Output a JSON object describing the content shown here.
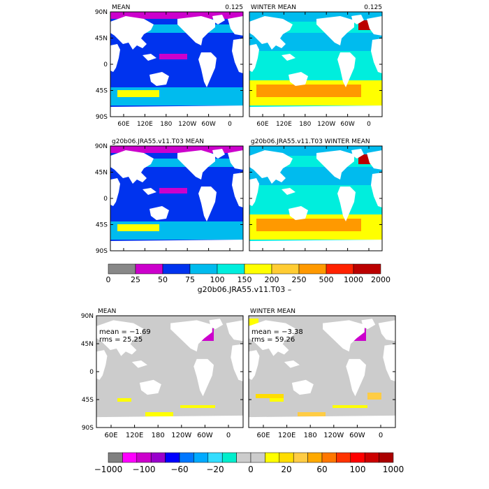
{
  "top_group": {
    "panels": [
      {
        "key": "p1",
        "title": "MEAN",
        "corner_value": "0.125",
        "show_lat_labels": true,
        "show_lon_labels": true,
        "style": "mean"
      },
      {
        "key": "p2",
        "title": "WINTER MEAN",
        "corner_value": "0.125",
        "show_lat_labels": false,
        "show_lon_labels": true,
        "style": "winter"
      },
      {
        "key": "p3",
        "title": "g20b06.JRA55.v11.T03 MEAN",
        "corner_value": "",
        "show_lat_labels": true,
        "show_lon_labels": false,
        "style": "mean"
      },
      {
        "key": "p4",
        "title": "g20b06.JRA55.v11.T03 WINTER MEAN",
        "corner_value": "",
        "show_lat_labels": false,
        "show_lon_labels": false,
        "style": "winter"
      }
    ],
    "lat_labels": [
      "90N",
      "45N",
      "0",
      "45S",
      "90S"
    ],
    "lon_labels": [
      "60E",
      "120E",
      "180",
      "120W",
      "60W",
      "0"
    ],
    "colorbar": {
      "colors": [
        "#888888",
        "#cc00cc",
        "#0033ee",
        "#00bbee",
        "#00eedd",
        "#ffff00",
        "#ffcc33",
        "#ff9900",
        "#ff2200",
        "#bb0000"
      ],
      "labels": [
        "0",
        "25",
        "50",
        "75",
        "100",
        "150",
        "200",
        "250",
        "500",
        "1000",
        "2000"
      ],
      "title": "g20b06.JRA55.v11.T03 –"
    }
  },
  "bottom_group": {
    "panels": [
      {
        "key": "d1",
        "title": "MEAN",
        "mean_text": "mean = −1.69",
        "rms_text": "rms = 25.25",
        "show_lat_labels": true,
        "style": "diff_mean"
      },
      {
        "key": "d2",
        "title": "WINTER MEAN",
        "mean_text": "mean = −3.38",
        "rms_text": "rms = 59.26",
        "show_lat_labels": false,
        "style": "diff_winter"
      }
    ],
    "lat_labels": [
      "90N",
      "45N",
      "0",
      "45S",
      "90S"
    ],
    "lon_labels": [
      "60E",
      "120E",
      "180",
      "120W",
      "60W",
      "0"
    ],
    "colorbar": {
      "colors": [
        "#808080",
        "#ff00ff",
        "#cc00cc",
        "#9900cc",
        "#0000ff",
        "#0077ff",
        "#00aaff",
        "#33ddff",
        "#00eecc",
        "#cccccc",
        "#cccccc",
        "#ffff00",
        "#ffdd00",
        "#ffcc44",
        "#ffaa00",
        "#ff7700",
        "#ff3300",
        "#ff0000",
        "#cc0000",
        "#aa0000"
      ],
      "labels": [
        "−1000",
        "−100",
        "−60",
        "−20",
        "0",
        "20",
        "60",
        "100",
        "1000"
      ]
    }
  },
  "colors": {
    "land": "#ffffff",
    "land_diff": "#cccccc",
    "frame": "#000000",
    "missing": "#888888"
  }
}
